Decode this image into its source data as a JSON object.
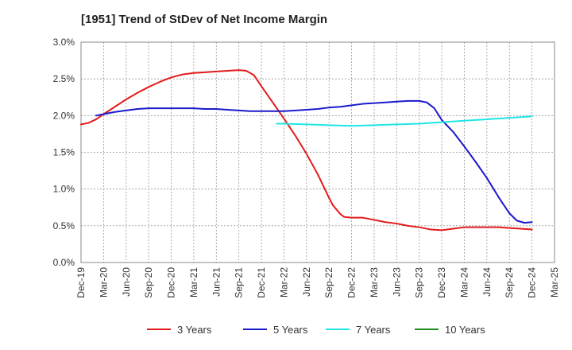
{
  "chart_data": {
    "type": "line",
    "title": "[1951]  Trend of StDev of Net Income Margin",
    "xlabel": "",
    "ylabel": "",
    "x_ticks": [
      "Dec-19",
      "Mar-20",
      "Jun-20",
      "Sep-20",
      "Dec-20",
      "Mar-21",
      "Jun-21",
      "Sep-21",
      "Dec-21",
      "Mar-22",
      "Jun-22",
      "Sep-22",
      "Dec-22",
      "Mar-23",
      "Jun-23",
      "Sep-23",
      "Dec-23",
      "Mar-24",
      "Jun-24",
      "Sep-24",
      "Dec-24",
      "Mar-25"
    ],
    "y_ticks": [
      "0.0%",
      "0.5%",
      "1.0%",
      "1.5%",
      "2.0%",
      "2.5%",
      "3.0%"
    ],
    "ylim": [
      0,
      3.0
    ],
    "grid": true,
    "legend_position": "bottom",
    "series": [
      {
        "name": "3 Years",
        "color": "#e31a1c",
        "points": [
          [
            0,
            1.88
          ],
          [
            0.33,
            1.9
          ],
          [
            0.67,
            1.95
          ],
          [
            1,
            2.02
          ],
          [
            1.5,
            2.12
          ],
          [
            2,
            2.22
          ],
          [
            2.5,
            2.31
          ],
          [
            3,
            2.39
          ],
          [
            3.5,
            2.46
          ],
          [
            4,
            2.52
          ],
          [
            4.5,
            2.56
          ],
          [
            5,
            2.58
          ],
          [
            5.5,
            2.59
          ],
          [
            6,
            2.6
          ],
          [
            6.5,
            2.61
          ],
          [
            7,
            2.62
          ],
          [
            7.33,
            2.61
          ],
          [
            7.67,
            2.55
          ],
          [
            8,
            2.4
          ],
          [
            8.5,
            2.18
          ],
          [
            9,
            1.96
          ],
          [
            9.5,
            1.73
          ],
          [
            10,
            1.48
          ],
          [
            10.5,
            1.2
          ],
          [
            11,
            0.88
          ],
          [
            11.17,
            0.78
          ],
          [
            11.5,
            0.66
          ],
          [
            11.67,
            0.62
          ],
          [
            12,
            0.61
          ],
          [
            12.5,
            0.61
          ],
          [
            13,
            0.58
          ],
          [
            13.5,
            0.55
          ],
          [
            14,
            0.53
          ],
          [
            14.5,
            0.5
          ],
          [
            15,
            0.48
          ],
          [
            15.5,
            0.45
          ],
          [
            16,
            0.44
          ],
          [
            16.5,
            0.46
          ],
          [
            17,
            0.48
          ],
          [
            17.5,
            0.48
          ],
          [
            18,
            0.48
          ],
          [
            18.5,
            0.48
          ],
          [
            19,
            0.47
          ],
          [
            19.5,
            0.46
          ],
          [
            20,
            0.45
          ]
        ]
      },
      {
        "name": "5 Years",
        "color": "#1a1acc",
        "points": [
          [
            0.67,
            2.0
          ],
          [
            1,
            2.02
          ],
          [
            1.5,
            2.05
          ],
          [
            2,
            2.07
          ],
          [
            2.5,
            2.09
          ],
          [
            3,
            2.1
          ],
          [
            3.5,
            2.1
          ],
          [
            4,
            2.1
          ],
          [
            4.5,
            2.1
          ],
          [
            5,
            2.1
          ],
          [
            5.5,
            2.09
          ],
          [
            6,
            2.09
          ],
          [
            6.5,
            2.08
          ],
          [
            7,
            2.07
          ],
          [
            7.5,
            2.06
          ],
          [
            8,
            2.06
          ],
          [
            8.5,
            2.06
          ],
          [
            9,
            2.06
          ],
          [
            9.5,
            2.07
          ],
          [
            10,
            2.08
          ],
          [
            10.5,
            2.09
          ],
          [
            11,
            2.11
          ],
          [
            11.5,
            2.12
          ],
          [
            12,
            2.14
          ],
          [
            12.5,
            2.16
          ],
          [
            13,
            2.17
          ],
          [
            13.5,
            2.18
          ],
          [
            14,
            2.19
          ],
          [
            14.5,
            2.2
          ],
          [
            15,
            2.2
          ],
          [
            15.33,
            2.18
          ],
          [
            15.67,
            2.1
          ],
          [
            16,
            1.94
          ],
          [
            16.5,
            1.78
          ],
          [
            17,
            1.58
          ],
          [
            17.5,
            1.37
          ],
          [
            18,
            1.15
          ],
          [
            18.5,
            0.9
          ],
          [
            18.67,
            0.82
          ],
          [
            19,
            0.67
          ],
          [
            19.33,
            0.57
          ],
          [
            19.67,
            0.54
          ],
          [
            20,
            0.55
          ]
        ]
      },
      {
        "name": "7 Years",
        "color": "#22e5e5",
        "points": [
          [
            8.67,
            1.89
          ],
          [
            9,
            1.89
          ],
          [
            10,
            1.88
          ],
          [
            11,
            1.87
          ],
          [
            12,
            1.86
          ],
          [
            13,
            1.87
          ],
          [
            14,
            1.88
          ],
          [
            15,
            1.89
          ],
          [
            16,
            1.91
          ],
          [
            17,
            1.93
          ],
          [
            18,
            1.95
          ],
          [
            19,
            1.97
          ],
          [
            20,
            1.99
          ]
        ]
      },
      {
        "name": "10 Years",
        "color": "#1a8c1a",
        "points": []
      }
    ]
  }
}
